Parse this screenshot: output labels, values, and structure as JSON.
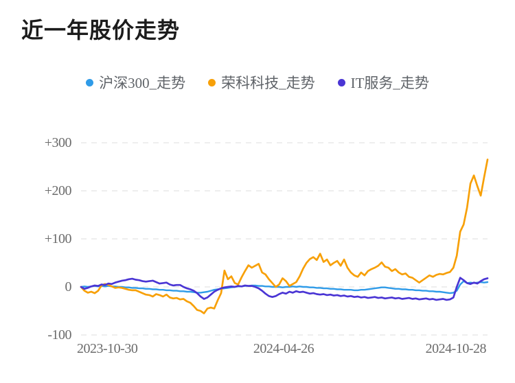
{
  "title": "近一年股价走势",
  "legend": {
    "items": [
      {
        "label": "沪深300_走势",
        "color": "#2F9BE8"
      },
      {
        "label": "荣科科技_走势",
        "color": "#F7A008"
      },
      {
        "label": "IT服务_走势",
        "color": "#4A35D4"
      }
    ]
  },
  "chart_data": {
    "type": "line",
    "title": "近一年股价走势",
    "x_ticks": [
      "2023-10-30",
      "2024-04-26",
      "2024-10-28"
    ],
    "x_range": [
      "2023-10-30",
      "2024-10-28"
    ],
    "ylim": [
      -100,
      300
    ],
    "grid": "horizontal dashed gridlines",
    "legend_position": "top",
    "gridline_color": "#e4e4e4",
    "y_ticks": [
      {
        "label": "+300",
        "value": 300
      },
      {
        "label": "+200",
        "value": 200
      },
      {
        "label": "+100",
        "value": 100
      },
      {
        "label": "0",
        "value": 0
      },
      {
        "label": "-100",
        "value": -100
      }
    ],
    "series": [
      {
        "name": "沪深300_走势",
        "color": "#2F9BE8",
        "width": 2.4,
        "values": [
          0,
          1,
          0,
          1,
          2,
          1,
          2,
          1,
          2,
          1,
          1,
          0,
          0,
          -1,
          -1,
          -2,
          -2,
          -3,
          -3,
          -4,
          -4,
          -5,
          -5,
          -6,
          -6,
          -7,
          -7,
          -8,
          -8,
          -9,
          -9,
          -10,
          -10,
          -11,
          -12,
          -12,
          -11,
          -10,
          -8,
          -6,
          -5,
          -4,
          -3,
          -2,
          -1,
          0,
          1,
          1,
          2,
          2,
          3,
          3,
          2,
          2,
          1,
          1,
          0,
          0,
          0,
          -1,
          0,
          0,
          1,
          0,
          1,
          0,
          0,
          -1,
          -1,
          -2,
          -2,
          -3,
          -3,
          -4,
          -4,
          -5,
          -5,
          -6,
          -6,
          -6,
          -7,
          -7,
          -6,
          -6,
          -5,
          -4,
          -3,
          -2,
          -1,
          -1,
          -2,
          -3,
          -4,
          -4,
          -5,
          -5,
          -6,
          -6,
          -7,
          -7,
          -8,
          -8,
          -9,
          -9,
          -10,
          -10,
          -11,
          -12,
          -13,
          -12,
          -8,
          5,
          12,
          8,
          9,
          8,
          9,
          10,
          9,
          10
        ]
      },
      {
        "name": "荣科科技_走势",
        "color": "#F7A008",
        "width": 2.7,
        "values": [
          0,
          -8,
          -12,
          -10,
          -13,
          -8,
          3,
          6,
          4,
          1,
          -2,
          -1,
          -2,
          -4,
          -6,
          -7,
          -7,
          -10,
          -13,
          -16,
          -17,
          -20,
          -15,
          -17,
          -20,
          -16,
          -22,
          -24,
          -23,
          -26,
          -25,
          -30,
          -33,
          -40,
          -48,
          -50,
          -55,
          -45,
          -43,
          -45,
          -28,
          -13,
          34,
          16,
          22,
          8,
          5,
          20,
          33,
          45,
          40,
          44,
          48,
          30,
          26,
          16,
          8,
          0,
          5,
          18,
          12,
          2,
          6,
          10,
          22,
          38,
          50,
          58,
          62,
          56,
          69,
          52,
          57,
          45,
          50,
          54,
          44,
          57,
          40,
          30,
          24,
          21,
          30,
          24,
          33,
          37,
          40,
          44,
          51,
          42,
          40,
          33,
          37,
          30,
          26,
          28,
          21,
          19,
          14,
          9,
          14,
          19,
          24,
          21,
          25,
          27,
          26,
          29,
          31,
          40,
          65,
          115,
          130,
          165,
          215,
          232,
          210,
          190,
          228,
          265
        ]
      },
      {
        "name": "IT服务_走势",
        "color": "#4A35D4",
        "width": 2.7,
        "values": [
          0,
          -4,
          -2,
          1,
          3,
          2,
          5,
          4,
          7,
          6,
          9,
          11,
          13,
          14,
          16,
          17,
          15,
          14,
          12,
          11,
          12,
          13,
          10,
          7,
          8,
          9,
          5,
          3,
          4,
          4,
          0,
          -3,
          -5,
          -8,
          -13,
          -20,
          -25,
          -22,
          -16,
          -10,
          -6,
          -3,
          -1,
          0,
          1,
          0,
          2,
          1,
          3,
          2,
          2,
          0,
          -3,
          -8,
          -14,
          -19,
          -21,
          -19,
          -15,
          -12,
          -14,
          -10,
          -12,
          -9,
          -11,
          -10,
          -12,
          -14,
          -13,
          -15,
          -16,
          -15,
          -17,
          -16,
          -18,
          -17,
          -19,
          -18,
          -20,
          -19,
          -21,
          -20,
          -22,
          -21,
          -23,
          -22,
          -21,
          -23,
          -22,
          -24,
          -23,
          -22,
          -24,
          -23,
          -25,
          -24,
          -23,
          -25,
          -24,
          -26,
          -25,
          -24,
          -26,
          -25,
          -27,
          -26,
          -25,
          -27,
          -26,
          -22,
          0,
          19,
          14,
          8,
          6,
          9,
          7,
          12,
          16,
          18
        ]
      }
    ]
  }
}
